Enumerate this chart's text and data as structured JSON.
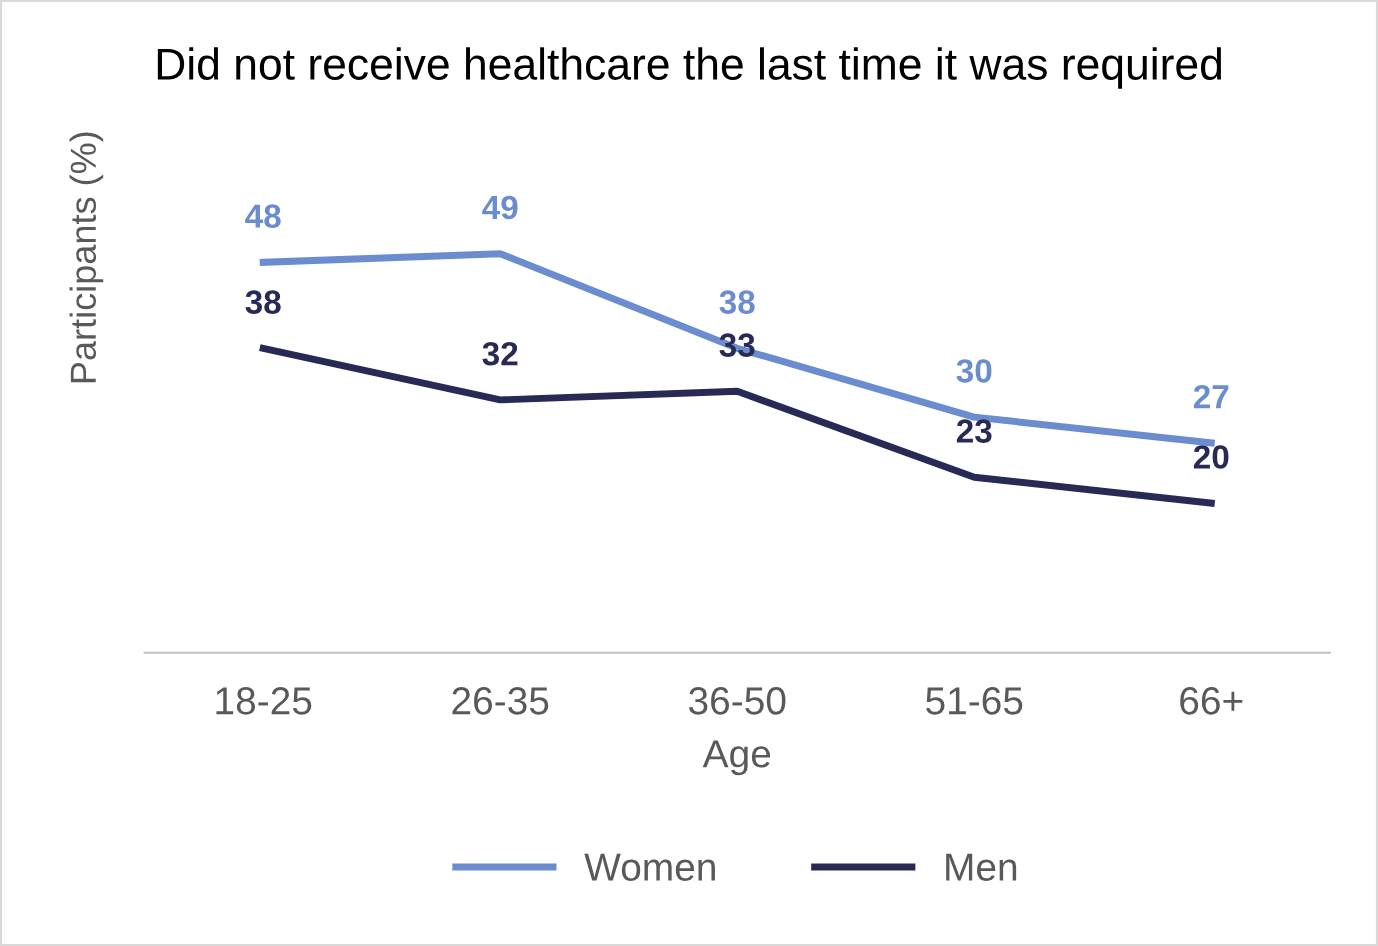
{
  "chart_data": {
    "type": "line",
    "title": "Did not receive healthcare the last time it was required",
    "xlabel": "Age",
    "ylabel": "Participants (%)",
    "categories": [
      "18-25",
      "26-35",
      "36-50",
      "51-65",
      "66+"
    ],
    "series": [
      {
        "name": "Women",
        "color": "#6b8cce",
        "values": [
          48,
          49,
          38,
          30,
          27
        ]
      },
      {
        "name": "Men",
        "color": "#262a55",
        "values": [
          38,
          32,
          33,
          23,
          20
        ]
      }
    ],
    "tick_labels": "x",
    "data_labels": true,
    "legend": "bottom",
    "grid": false,
    "line_style": "solid"
  }
}
